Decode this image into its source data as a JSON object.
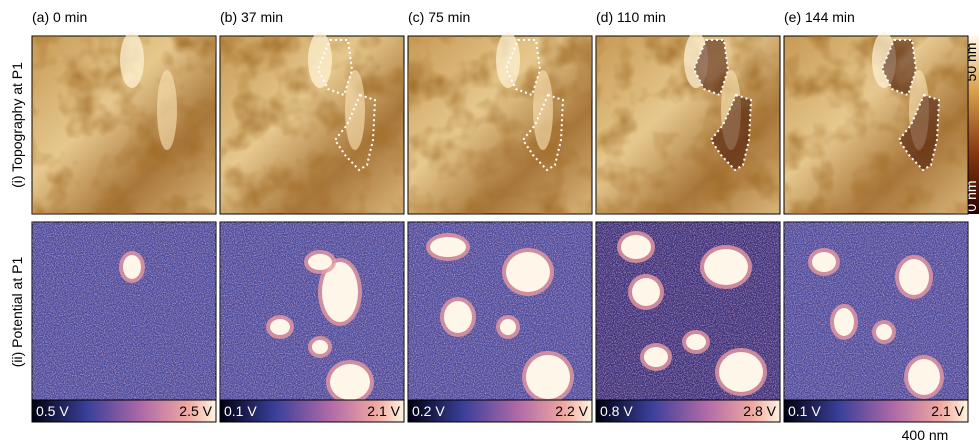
{
  "panels": [
    {
      "label": "(a) 0 min",
      "potential_min": "0.5 V",
      "potential_max": "2.5 V"
    },
    {
      "label": "(b) 37 min",
      "potential_min": "0.1 V",
      "potential_max": "2.1 V"
    },
    {
      "label": "(c) 75 min",
      "potential_min": "0.2 V",
      "potential_max": "2.2 V"
    },
    {
      "label": "(d) 110 min",
      "potential_min": "0.8 V",
      "potential_max": "2.8 V"
    },
    {
      "label": "(e) 144 min",
      "potential_min": "0.1 V",
      "potential_max": "2.1 V"
    }
  ],
  "rows": [
    "(i) Topography at P1",
    "(ii) Potential at P1"
  ],
  "topography_scale": {
    "min": "0 nm",
    "max": "50 nm"
  },
  "scale_bar": "400 nm"
}
